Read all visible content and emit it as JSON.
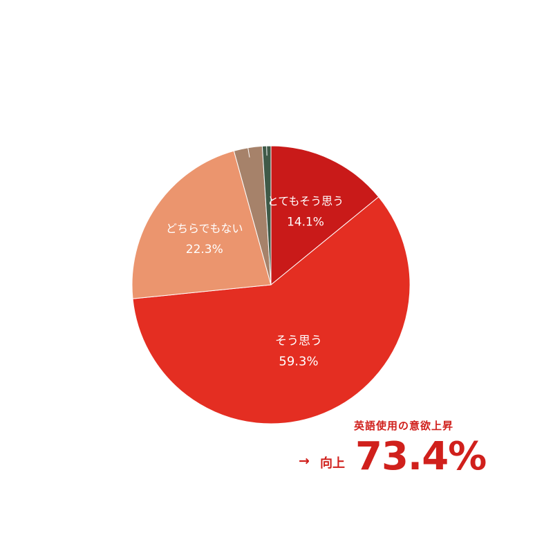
{
  "chart_data": {
    "type": "pie",
    "start_angle_deg": 0,
    "direction": "clockwise",
    "slices": [
      {
        "label": "とてもそう思う",
        "value": 14.1,
        "value_label": "14.1%",
        "color": "#c91a19",
        "show_label": true
      },
      {
        "label": "そう思う",
        "value": 59.3,
        "value_label": "59.3%",
        "color": "#e42e22",
        "show_label": true
      },
      {
        "label": "どちらでもない",
        "value": 22.3,
        "value_label": "22.3%",
        "color": "#eb956e",
        "show_label": true
      },
      {
        "label": "",
        "value": 3.3,
        "value_label": "",
        "color": "#a6826a",
        "show_label": false
      },
      {
        "label": "",
        "value": 1.0,
        "value_label": "",
        "color": "#3f5a48",
        "show_label": false
      }
    ]
  },
  "callout": {
    "caption": "英語使用の意欲上昇",
    "arrow": "→",
    "word": "向上",
    "percent": "73.4%",
    "color": "#d0201c"
  }
}
